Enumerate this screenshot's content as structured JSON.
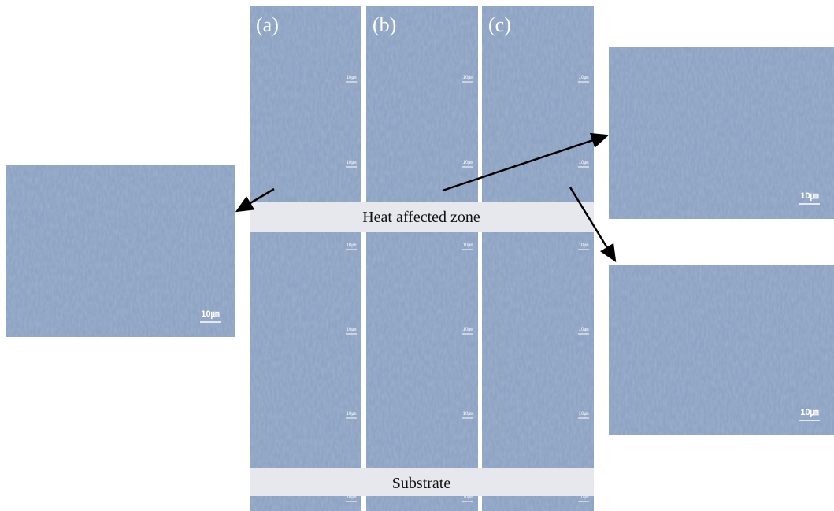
{
  "panels": [
    {
      "label": "(a)",
      "scale_labels": [
        "10㎛",
        "10㎛",
        "10㎛",
        "10㎛",
        "10㎛",
        "10㎛"
      ]
    },
    {
      "label": "(b)",
      "scale_labels": [
        "10㎛",
        "10㎛",
        "10㎛",
        "10㎛",
        "10㎛",
        "10㎛"
      ]
    },
    {
      "label": "(c)",
      "scale_labels": [
        "10㎛",
        "10㎛",
        "10㎛",
        "10㎛",
        "10㎛",
        "10㎛"
      ]
    }
  ],
  "zones": [
    "Heat affected zone",
    "Substrate"
  ],
  "insets": [
    {
      "scale_label": "10㎛"
    },
    {
      "scale_label": "10㎛"
    },
    {
      "scale_label": "10㎛"
    }
  ]
}
